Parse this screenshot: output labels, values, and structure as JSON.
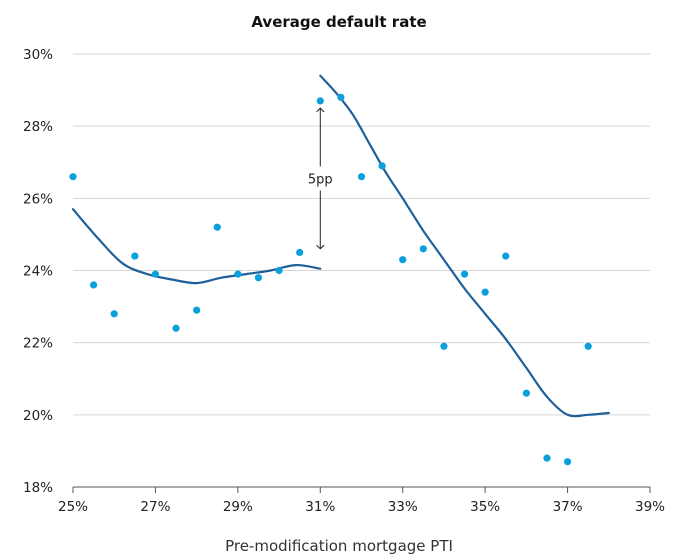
{
  "chart_data": {
    "type": "scatter",
    "title": "Average default rate",
    "xlabel": "Pre-modification mortgage PTI",
    "ylabel": "",
    "xlim": [
      25,
      39
    ],
    "ylim": [
      18,
      30
    ],
    "x_ticks": [
      25,
      27,
      29,
      31,
      33,
      35,
      37,
      39
    ],
    "y_ticks": [
      18,
      20,
      22,
      24,
      26,
      28,
      30
    ],
    "tick_suffix": "%",
    "grid": "horizontal",
    "colors": {
      "points": "#0aa0dc",
      "trend": "#1f5f9a",
      "grid": "#d6d6d6"
    },
    "points": [
      {
        "x": 25.0,
        "y": 26.6
      },
      {
        "x": 25.5,
        "y": 23.6
      },
      {
        "x": 26.0,
        "y": 22.8
      },
      {
        "x": 26.5,
        "y": 24.4
      },
      {
        "x": 27.0,
        "y": 23.9
      },
      {
        "x": 27.5,
        "y": 22.4
      },
      {
        "x": 28.0,
        "y": 22.9
      },
      {
        "x": 28.5,
        "y": 25.2
      },
      {
        "x": 29.0,
        "y": 23.9
      },
      {
        "x": 29.5,
        "y": 23.8
      },
      {
        "x": 30.0,
        "y": 24.0
      },
      {
        "x": 30.5,
        "y": 24.5
      },
      {
        "x": 31.0,
        "y": 28.7
      },
      {
        "x": 31.5,
        "y": 28.8
      },
      {
        "x": 32.0,
        "y": 26.6
      },
      {
        "x": 32.5,
        "y": 26.9
      },
      {
        "x": 33.0,
        "y": 24.3
      },
      {
        "x": 33.5,
        "y": 24.6
      },
      {
        "x": 34.0,
        "y": 21.9
      },
      {
        "x": 34.5,
        "y": 23.9
      },
      {
        "x": 35.0,
        "y": 23.4
      },
      {
        "x": 35.5,
        "y": 24.4
      },
      {
        "x": 36.0,
        "y": 20.6
      },
      {
        "x": 36.5,
        "y": 18.8
      },
      {
        "x": 37.0,
        "y": 18.7
      },
      {
        "x": 37.5,
        "y": 21.9
      }
    ],
    "trend_lines": [
      {
        "points": [
          [
            25.0,
            25.7
          ],
          [
            25.6,
            24.9
          ],
          [
            26.2,
            24.2
          ],
          [
            26.8,
            23.9
          ],
          [
            27.4,
            23.75
          ],
          [
            28.0,
            23.65
          ],
          [
            28.6,
            23.8
          ],
          [
            29.2,
            23.9
          ],
          [
            29.8,
            24.0
          ],
          [
            30.4,
            24.15
          ],
          [
            31.0,
            24.05
          ]
        ]
      },
      {
        "points": [
          [
            31.0,
            29.4
          ],
          [
            31.4,
            28.9
          ],
          [
            31.8,
            28.3
          ],
          [
            32.2,
            27.5
          ],
          [
            32.6,
            26.7
          ],
          [
            33.0,
            26.0
          ],
          [
            33.5,
            25.1
          ],
          [
            34.0,
            24.3
          ],
          [
            34.5,
            23.5
          ],
          [
            35.0,
            22.8
          ],
          [
            35.5,
            22.1
          ],
          [
            36.0,
            21.3
          ],
          [
            36.5,
            20.5
          ],
          [
            37.0,
            20.0
          ],
          [
            37.5,
            20.0
          ],
          [
            38.0,
            20.05
          ]
        ]
      }
    ],
    "annotation": {
      "text": "5pp",
      "x": 31.0,
      "y_top": 28.5,
      "y_bottom": 24.6
    }
  }
}
